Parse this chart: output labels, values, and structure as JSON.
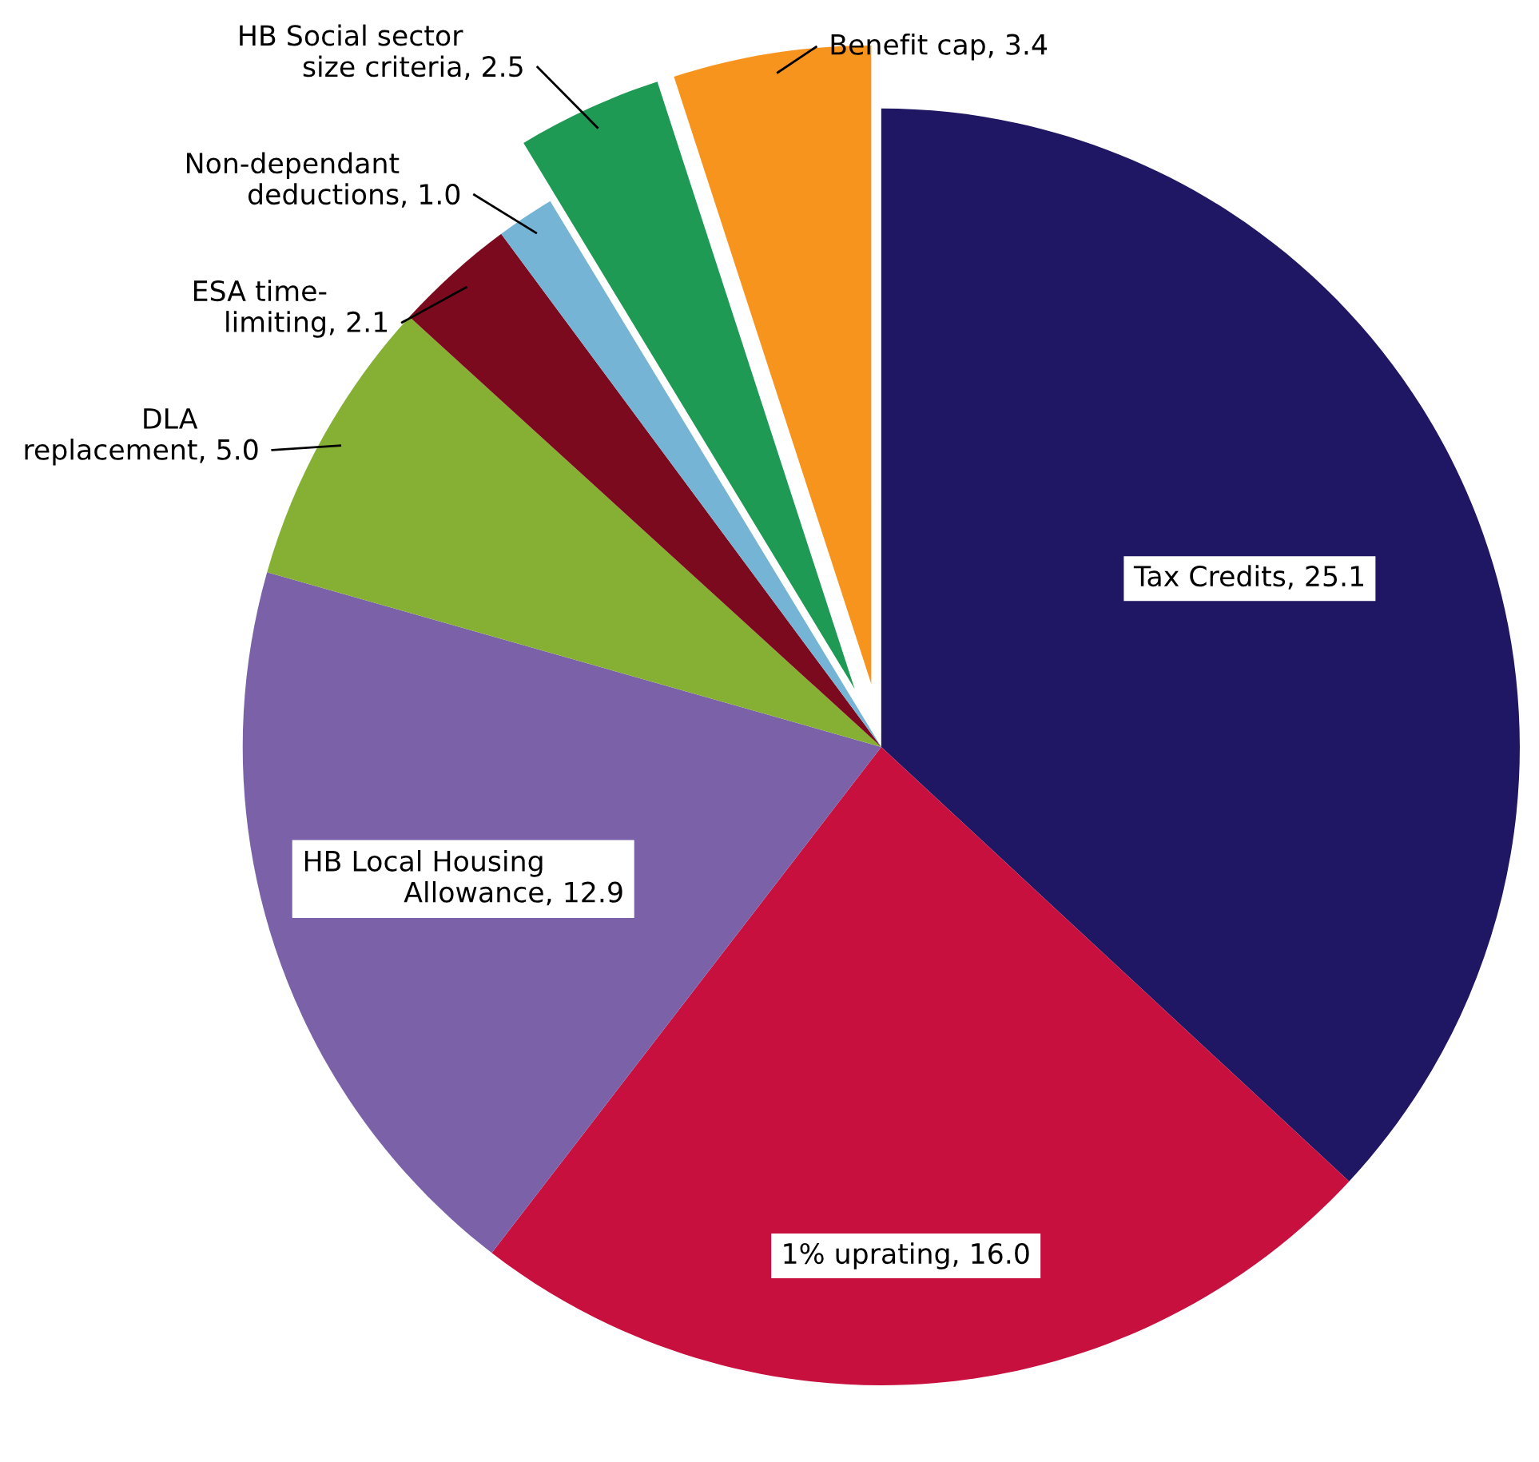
{
  "chart_data": {
    "type": "pie",
    "categories": [
      "Tax Credits",
      "1% uprating",
      "HB Local Housing\nAllowance",
      "DLA\nreplacement",
      "ESA time-\nlimiting",
      "Non-dependant\ndeductions",
      "HB Social sector\nsize criteria",
      "Benefit cap"
    ],
    "values": [
      25.1,
      16.0,
      12.9,
      5.0,
      2.1,
      1.0,
      2.5,
      3.4
    ],
    "colors": [
      "#1f1764",
      "#c8103f",
      "#7b62a8",
      "#86b033",
      "#7c0a1e",
      "#75b4d4",
      "#1e9a55",
      "#f7941d"
    ],
    "value_labels": [
      ", 25.1",
      ", 16.0",
      ", 12.9",
      ", 5.0",
      ", 2.1",
      ", 1.0",
      ", 2.5",
      ", 3.4"
    ],
    "legend": false
  }
}
